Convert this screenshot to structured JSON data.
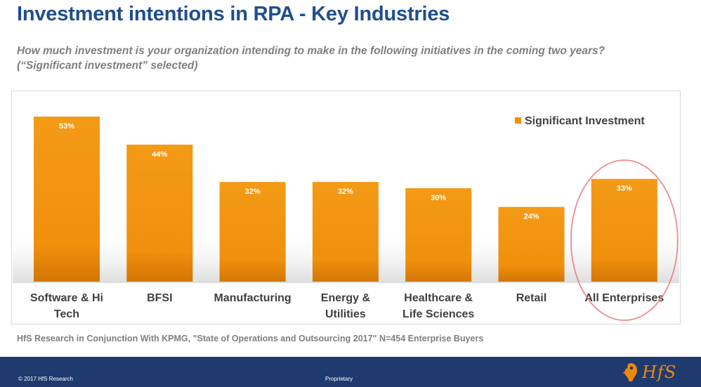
{
  "header": {
    "title": "Investment intentions in RPA - Key Industries",
    "subtitle_line1": "How much investment is your organization intending to make in the following initiatives in the coming two years?",
    "subtitle_line2": "(“Significant investment” selected)"
  },
  "chart_data": {
    "type": "bar",
    "categories": [
      [
        "Software & Hi",
        "Tech"
      ],
      [
        "BFSI"
      ],
      [
        "Manufacturing"
      ],
      [
        "Energy &",
        "Utilities"
      ],
      [
        "Healthcare &",
        "Life Sciences"
      ],
      [
        "Retail"
      ],
      [
        "All Enterprises"
      ]
    ],
    "series": [
      {
        "name": "Significant Investment",
        "values": [
          53,
          44,
          32,
          32,
          30,
          24,
          33
        ],
        "labels": [
          "53%",
          "44%",
          "32%",
          "32%",
          "30%",
          "24%",
          "33%"
        ]
      }
    ],
    "ylim": [
      0,
      55
    ],
    "grid": false,
    "legend": "top-right",
    "highlighted_category": "All Enterprises",
    "colors": {
      "bar": "#f0900d",
      "bar_dark": "#d87a06",
      "highlight_ring": "#e8787a"
    }
  },
  "source": "HfS Research in Conjunction With KPMG, \"State of Operations and Outsourcing 2017\" N=454 Enterprise Buyers",
  "footer": {
    "copyright": "© 2017 HfS Research",
    "center_text": "Proprietary",
    "logo_text": "HfS",
    "logo_icon": "hfs-bird-logo-icon"
  }
}
